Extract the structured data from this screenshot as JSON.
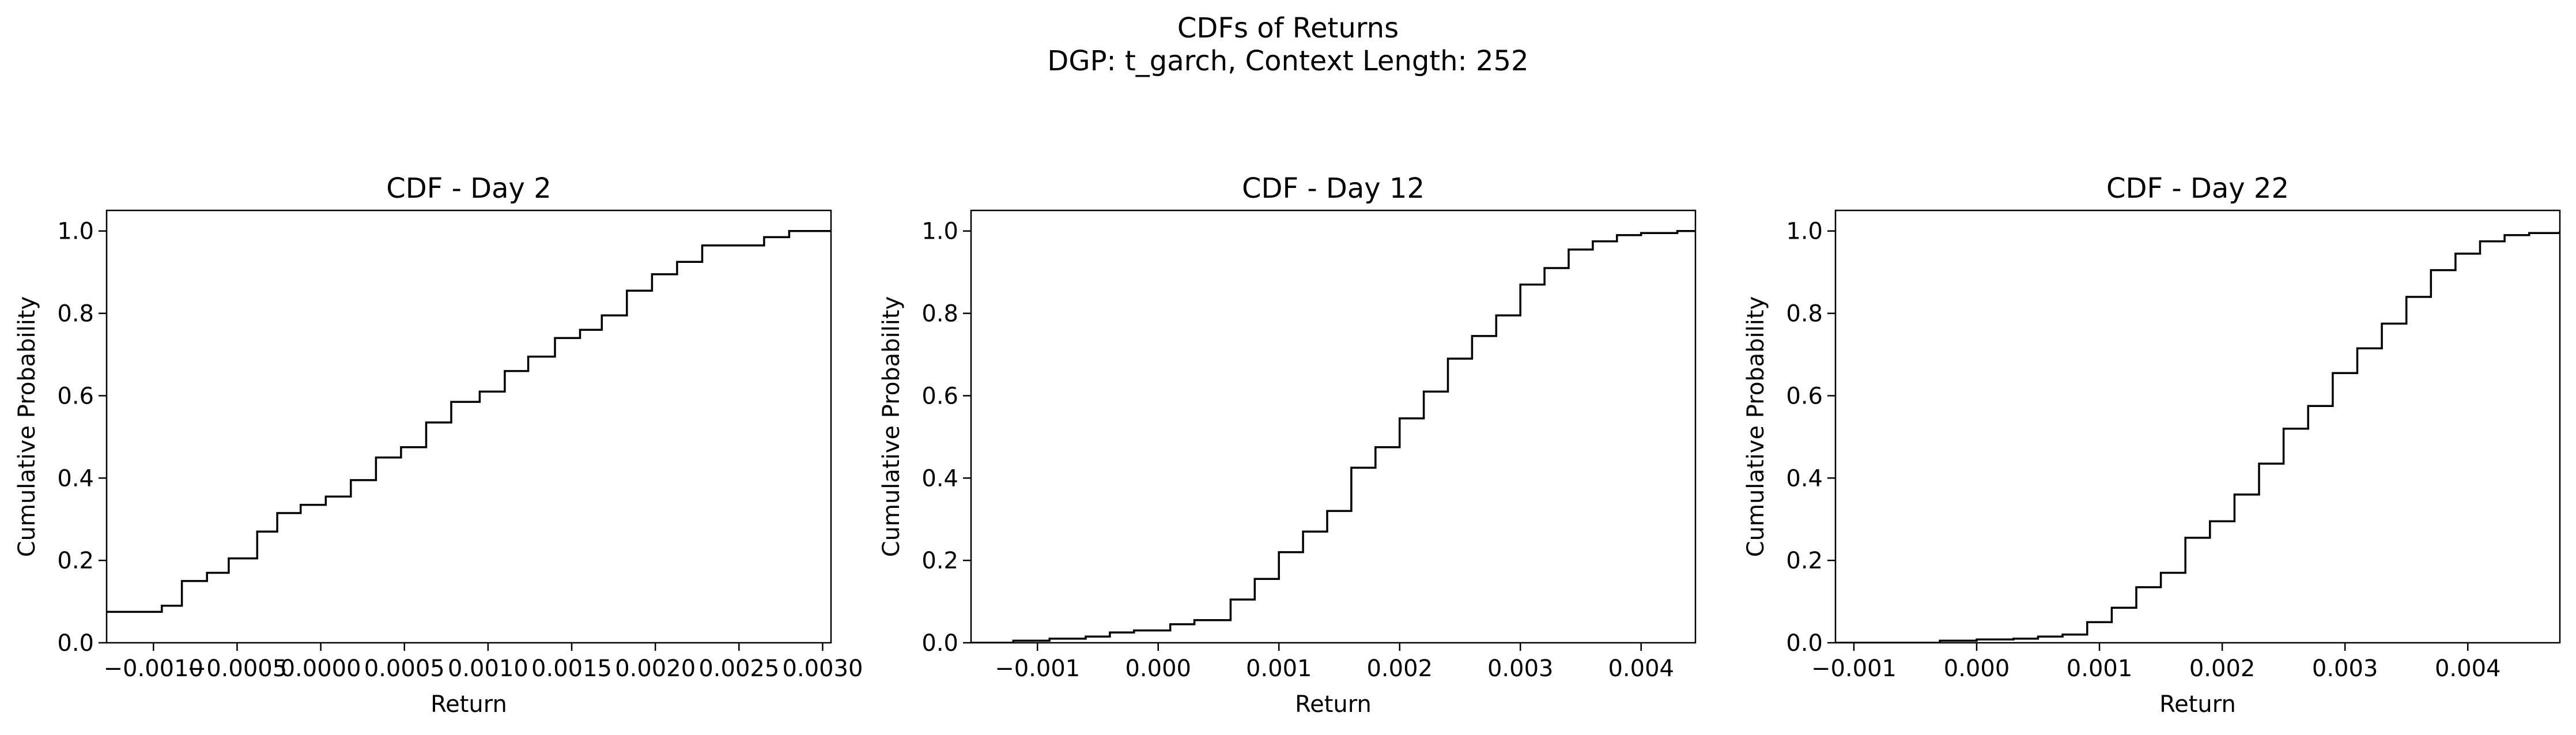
{
  "figure": {
    "title_line1": "CDFs of Returns",
    "title_line2": "DGP: t_garch, Context Length: 252"
  },
  "chart_data": [
    {
      "type": "line",
      "style": "step",
      "title": "CDF - Day 2",
      "xlabel": "Return",
      "ylabel": "Cumulative Probability",
      "xlim": [
        -0.00128,
        0.00305
      ],
      "ylim": [
        0.0,
        1.05
      ],
      "xticks": [
        -0.001,
        -0.0005,
        0.0,
        0.0005,
        0.001,
        0.0015,
        0.002,
        0.0025,
        0.003
      ],
      "xtick_labels": [
        "−0.0010",
        "−0.0005",
        "0.0000",
        "0.0005",
        "0.0010",
        "0.0015",
        "0.0020",
        "0.0025",
        "0.0030"
      ],
      "yticks": [
        0.0,
        0.2,
        0.4,
        0.6,
        0.8,
        1.0
      ],
      "ytick_labels": [
        "0.0",
        "0.2",
        "0.4",
        "0.6",
        "0.8",
        "1.0"
      ],
      "grid": false,
      "line_color": "#000000",
      "x": [
        -0.00128,
        -0.00095,
        -0.00083,
        -0.00068,
        -0.00055,
        -0.00038,
        -0.00026,
        -0.00012,
        3e-05,
        0.00018,
        0.00033,
        0.00048,
        0.00063,
        0.00078,
        0.00095,
        0.0011,
        0.00124,
        0.0014,
        0.00155,
        0.00168,
        0.00183,
        0.00198,
        0.00213,
        0.00228,
        0.00265,
        0.0028,
        0.00305
      ],
      "y": [
        0.075,
        0.09,
        0.15,
        0.17,
        0.205,
        0.27,
        0.315,
        0.335,
        0.355,
        0.395,
        0.45,
        0.475,
        0.535,
        0.585,
        0.61,
        0.66,
        0.695,
        0.74,
        0.76,
        0.795,
        0.855,
        0.895,
        0.925,
        0.965,
        0.985,
        1.0,
        1.0
      ]
    },
    {
      "type": "line",
      "style": "step",
      "title": "CDF - Day 12",
      "xlabel": "Return",
      "ylabel": "Cumulative Probability",
      "xlim": [
        -0.00155,
        0.00445
      ],
      "ylim": [
        0.0,
        1.05
      ],
      "xticks": [
        -0.001,
        0.0,
        0.001,
        0.002,
        0.003,
        0.004
      ],
      "xtick_labels": [
        "−0.001",
        "0.000",
        "0.001",
        "0.002",
        "0.003",
        "0.004"
      ],
      "yticks": [
        0.0,
        0.2,
        0.4,
        0.6,
        0.8,
        1.0
      ],
      "ytick_labels": [
        "0.0",
        "0.2",
        "0.4",
        "0.6",
        "0.8",
        "1.0"
      ],
      "grid": false,
      "line_color": "#000000",
      "x": [
        -0.00155,
        -0.0012,
        -0.0009,
        -0.0006,
        -0.0004,
        -0.0002,
        0.0001,
        0.0003,
        0.0006,
        0.0008,
        0.001,
        0.0012,
        0.0014,
        0.0016,
        0.0018,
        0.002,
        0.0022,
        0.0024,
        0.0026,
        0.0028,
        0.003,
        0.0032,
        0.0034,
        0.0036,
        0.0038,
        0.004,
        0.0043,
        0.00445
      ],
      "y": [
        0.0,
        0.005,
        0.01,
        0.015,
        0.025,
        0.03,
        0.045,
        0.055,
        0.105,
        0.155,
        0.22,
        0.27,
        0.32,
        0.425,
        0.475,
        0.545,
        0.61,
        0.69,
        0.745,
        0.795,
        0.87,
        0.91,
        0.955,
        0.975,
        0.99,
        0.995,
        1.0,
        1.0
      ]
    },
    {
      "type": "line",
      "style": "step",
      "title": "CDF - Day 22",
      "xlabel": "Return",
      "ylabel": "Cumulative Probability",
      "xlim": [
        -0.00115,
        0.00475
      ],
      "ylim": [
        0.0,
        1.05
      ],
      "xticks": [
        -0.001,
        0.0,
        0.001,
        0.002,
        0.003,
        0.004
      ],
      "xtick_labels": [
        "−0.001",
        "0.000",
        "0.001",
        "0.002",
        "0.003",
        "0.004"
      ],
      "yticks": [
        0.0,
        0.2,
        0.4,
        0.6,
        0.8,
        1.0
      ],
      "ytick_labels": [
        "0.0",
        "0.2",
        "0.4",
        "0.6",
        "0.8",
        "1.0"
      ],
      "grid": false,
      "line_color": "#000000",
      "x": [
        -0.00115,
        -0.0003,
        0.0,
        0.0003,
        0.0005,
        0.0007,
        0.0009,
        0.0011,
        0.0013,
        0.0015,
        0.0017,
        0.0019,
        0.0021,
        0.0023,
        0.0025,
        0.0027,
        0.0029,
        0.0031,
        0.0033,
        0.0035,
        0.0037,
        0.0039,
        0.0041,
        0.0043,
        0.0045,
        0.00475
      ],
      "y": [
        0.0,
        0.005,
        0.008,
        0.01,
        0.015,
        0.02,
        0.05,
        0.085,
        0.135,
        0.17,
        0.255,
        0.295,
        0.36,
        0.435,
        0.52,
        0.575,
        0.655,
        0.715,
        0.775,
        0.84,
        0.905,
        0.945,
        0.975,
        0.99,
        0.995,
        1.0
      ]
    }
  ]
}
